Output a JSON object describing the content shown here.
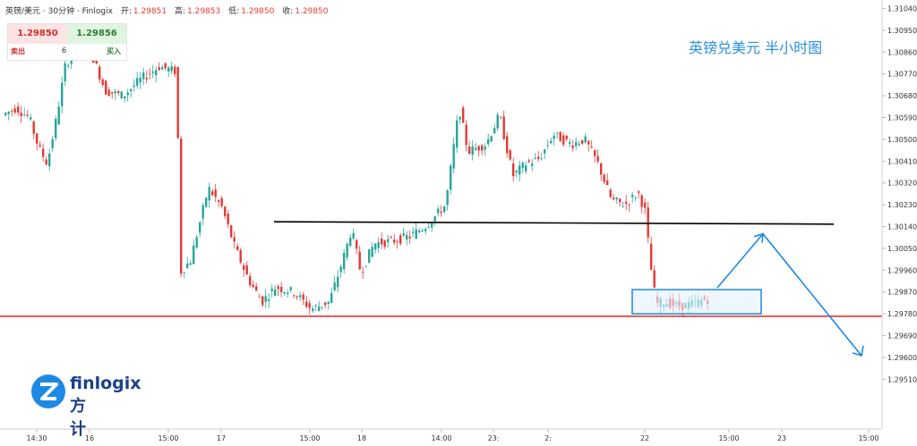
{
  "header": {
    "symbol": "英镑/美元 · 30分钟 · Finlogix",
    "open_label": "开:",
    "open_value": "1.29851",
    "high_label": "高:",
    "high_value": "1.29853",
    "low_label": "低:",
    "low_value": "1.29850",
    "close_label": "收:",
    "close_value": "1.29850"
  },
  "trade_panel": {
    "sell_price": "1.29850",
    "buy_price": "1.29856",
    "sell_label": "卖出",
    "quantity": "6",
    "buy_label": "买入"
  },
  "logo": {
    "brand": "finlogix",
    "brand_cn": "方计"
  },
  "colors": {
    "up": "#26a69a",
    "down": "#e53935",
    "support": "#e53935",
    "resistance": "#000000",
    "arrow": "#1e88e5",
    "box_fill": "#e3f2fd",
    "box_stroke": "#1e88e5"
  },
  "chart_data": {
    "type": "candlestick",
    "title": "英镑兑美元 半小时图",
    "y_ticks": [
      "1.31040",
      "1.30950",
      "1.30860",
      "1.30770",
      "1.30680",
      "1.30590",
      "1.30500",
      "1.30410",
      "1.30320",
      "1.30230",
      "1.30140",
      "1.30050",
      "1.29960",
      "1.29870",
      "1.29780",
      "1.29690",
      "1.29600",
      "1.29510"
    ],
    "y_range": [
      1.2951,
      1.3104
    ],
    "x_ticks": [
      "14:30",
      "16",
      "15:00",
      "17",
      "15:00",
      "18",
      "14:00",
      "23:",
      "2:",
      "22",
      "15:00",
      "23",
      "15:00"
    ],
    "horizontal_lines": [
      {
        "name": "support",
        "value": 1.2977
      },
      {
        "name": "resistance",
        "value": 1.3015
      }
    ],
    "highlight_box": {
      "from_low": 1.2978,
      "to_high": 1.2988
    },
    "projection": [
      1.2988,
      1.3011,
      1.296
    ],
    "current_price": 1.2985
  }
}
